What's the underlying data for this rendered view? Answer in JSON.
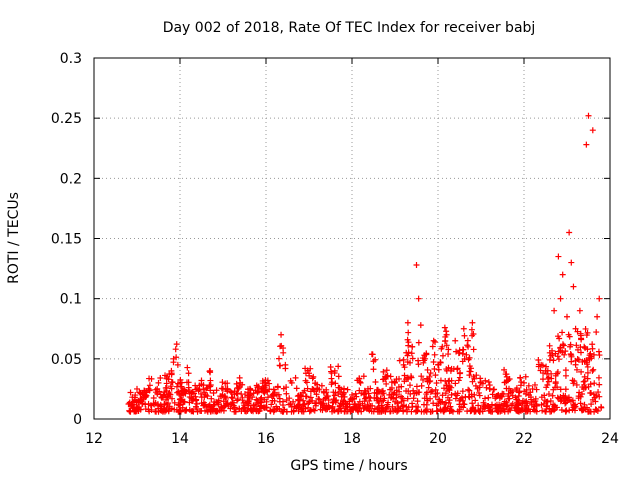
{
  "chart_data": {
    "type": "scatter",
    "title": "Day 002 of 2018, Rate Of TEC Index for receiver babj",
    "xlabel": "GPS time / hours",
    "ylabel": "ROTI / TECUs",
    "xlim": [
      12,
      24
    ],
    "ylim": [
      0,
      0.3
    ],
    "xticks": [
      12,
      14,
      16,
      18,
      20,
      22,
      24
    ],
    "xtick_labels": [
      "12",
      "14",
      "16",
      "18",
      "20",
      "22",
      "24"
    ],
    "yticks": [
      0,
      0.05,
      0.1,
      0.15,
      0.2,
      0.25,
      0.3
    ],
    "ytick_labels": [
      "0",
      "0.05",
      "0.1",
      "0.15",
      "0.2",
      "0.25",
      "0.3"
    ],
    "grid": true,
    "marker": "+",
    "color": "#ff0000",
    "series": [
      {
        "name": "ROTI",
        "note": "dense scatter of ~thousands of points between 12.8 and 23.8 h; representative sample",
        "x": [
          12.85,
          12.9,
          12.95,
          13.0,
          13.05,
          13.1,
          13.2,
          13.3,
          13.4,
          13.5,
          13.6,
          13.7,
          13.8,
          13.85,
          13.9,
          13.95,
          14.0,
          14.1,
          14.2,
          14.3,
          14.4,
          14.5,
          14.6,
          14.7,
          14.8,
          15.0,
          15.2,
          15.4,
          15.6,
          15.8,
          16.0,
          16.2,
          16.35,
          16.4,
          16.45,
          16.6,
          16.8,
          17.0,
          17.1,
          17.2,
          17.4,
          17.6,
          17.8,
          18.0,
          18.2,
          18.4,
          18.5,
          18.6,
          18.8,
          19.0,
          19.2,
          19.3,
          19.4,
          19.5,
          19.55,
          19.6,
          19.7,
          19.8,
          19.9,
          20.0,
          20.1,
          20.2,
          20.3,
          20.4,
          20.5,
          20.6,
          20.7,
          20.8,
          21.0,
          21.2,
          21.4,
          21.6,
          21.8,
          22.0,
          22.2,
          22.4,
          22.5,
          22.6,
          22.7,
          22.8,
          22.85,
          22.9,
          23.0,
          23.05,
          23.1,
          23.15,
          23.2,
          23.3,
          23.4,
          23.45,
          23.5,
          23.6,
          23.7,
          23.75
        ],
        "y": [
          0.022,
          0.012,
          0.018,
          0.025,
          0.01,
          0.015,
          0.02,
          0.028,
          0.012,
          0.03,
          0.018,
          0.035,
          0.04,
          0.05,
          0.058,
          0.045,
          0.03,
          0.022,
          0.038,
          0.015,
          0.025,
          0.032,
          0.02,
          0.04,
          0.012,
          0.025,
          0.018,
          0.03,
          0.015,
          0.022,
          0.028,
          0.015,
          0.07,
          0.055,
          0.045,
          0.03,
          0.02,
          0.038,
          0.035,
          0.025,
          0.018,
          0.04,
          0.012,
          0.02,
          0.03,
          0.015,
          0.048,
          0.022,
          0.035,
          0.03,
          0.045,
          0.08,
          0.06,
          0.128,
          0.1,
          0.078,
          0.05,
          0.035,
          0.065,
          0.045,
          0.06,
          0.07,
          0.04,
          0.065,
          0.055,
          0.075,
          0.06,
          0.08,
          0.03,
          0.025,
          0.02,
          0.035,
          0.018,
          0.03,
          0.025,
          0.045,
          0.04,
          0.055,
          0.09,
          0.135,
          0.1,
          0.12,
          0.085,
          0.155,
          0.13,
          0.11,
          0.075,
          0.09,
          0.06,
          0.228,
          0.252,
          0.24,
          0.085,
          0.1
        ]
      }
    ]
  }
}
